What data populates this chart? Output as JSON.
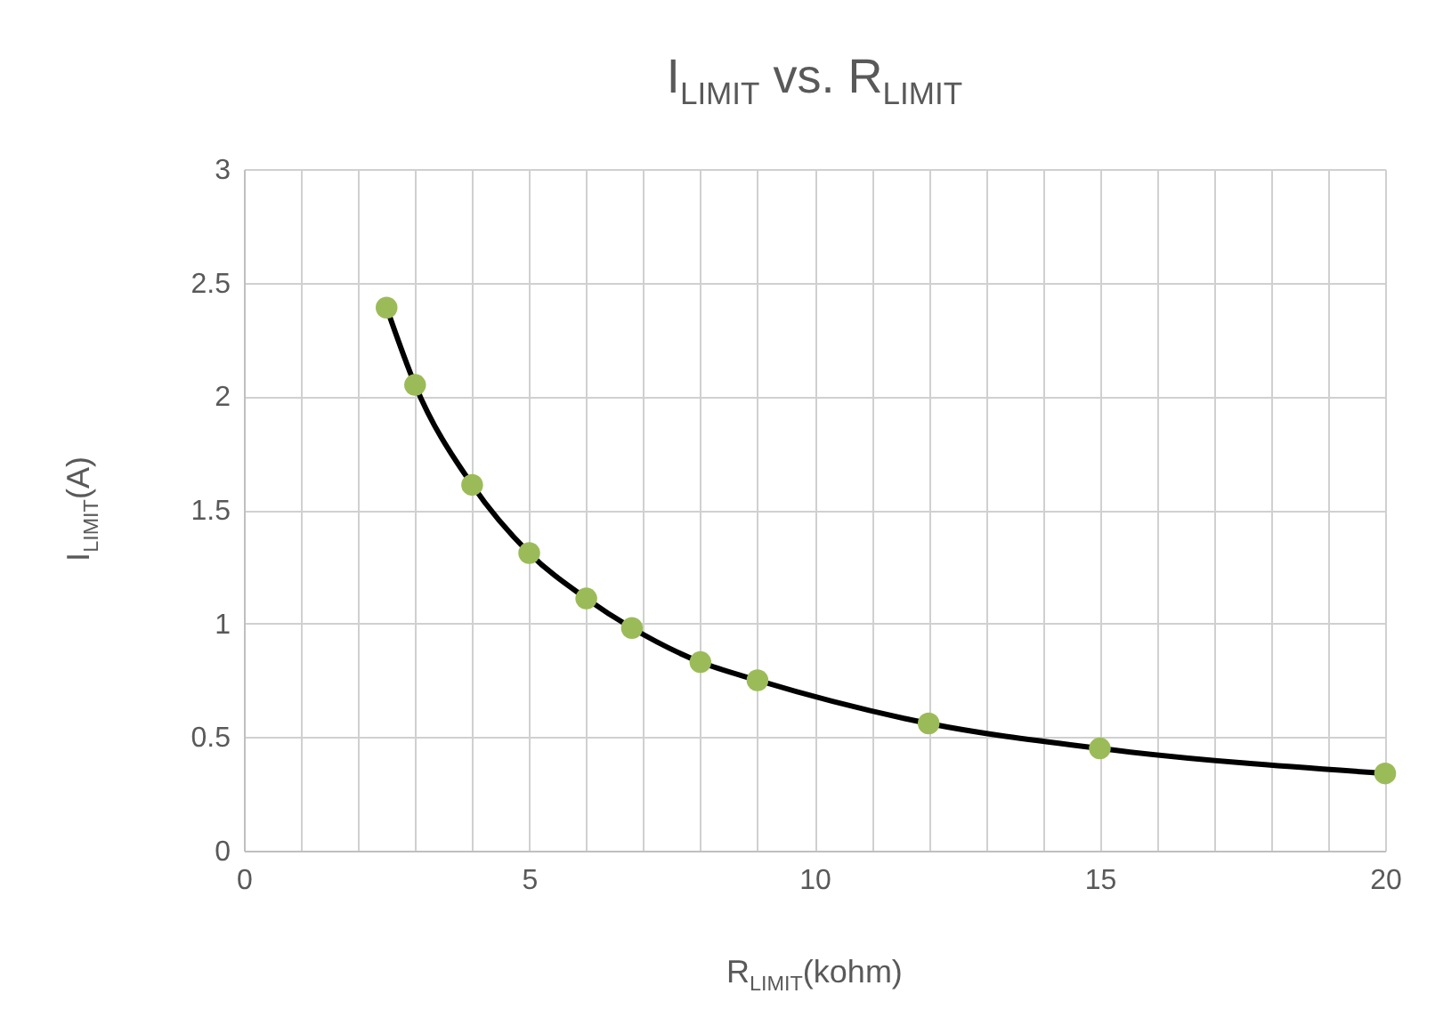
{
  "chart_data": {
    "type": "line",
    "title": "I$_{LIMIT}$ vs. R$_{LIMIT}$",
    "xlabel": "R$_{LIMIT}$(kohm)",
    "ylabel": "I$_{LIMIT}$(A)",
    "x": [
      2.5,
      3,
      4,
      5,
      6,
      6.8,
      8,
      9,
      12,
      15,
      20
    ],
    "series": [
      {
        "color": "#000000",
        "colors": [
          "#9bbb59",
          "#9bbb59",
          "#9bbb59",
          "#9bbb59",
          "#9bbb59",
          "#9bbb59",
          "#9bbb59",
          "#9bbb59",
          "#9bbb59",
          "#9bbb59",
          "#9bbb59"
        ],
        "values": [
          2.39,
          2.05,
          1.61,
          1.31,
          1.11,
          0.98,
          0.83,
          0.75,
          0.56,
          0.45,
          0.34
        ]
      }
    ],
    "xlim": [
      0,
      20
    ],
    "xticks": [
      0,
      {
        "value": 1,
        "label": null
      },
      {
        "value": 2,
        "label": null
      },
      {
        "value": 3,
        "label": null
      },
      {
        "value": 4,
        "label": null
      },
      5,
      {
        "value": 6,
        "label": null
      },
      {
        "value": 7,
        "label": null
      },
      {
        "value": 8,
        "label": null
      },
      {
        "value": 9,
        "label": null
      },
      10,
      {
        "value": 11,
        "label": null
      },
      {
        "value": 12,
        "label": null
      },
      {
        "value": 13,
        "label": null
      },
      {
        "value": 14,
        "label": null
      },
      15,
      {
        "value": 16,
        "label": null
      },
      {
        "value": 17,
        "label": null
      },
      {
        "value": 18,
        "label": null
      },
      {
        "value": 19,
        "label": null
      },
      20
    ],
    "ylim": [
      0,
      3
    ],
    "yticks": [
      0,
      0.5,
      1,
      1.5,
      2,
      2.5,
      3
    ],
    "grid": true,
    "marker": "circle",
    "line_style": "solid"
  }
}
